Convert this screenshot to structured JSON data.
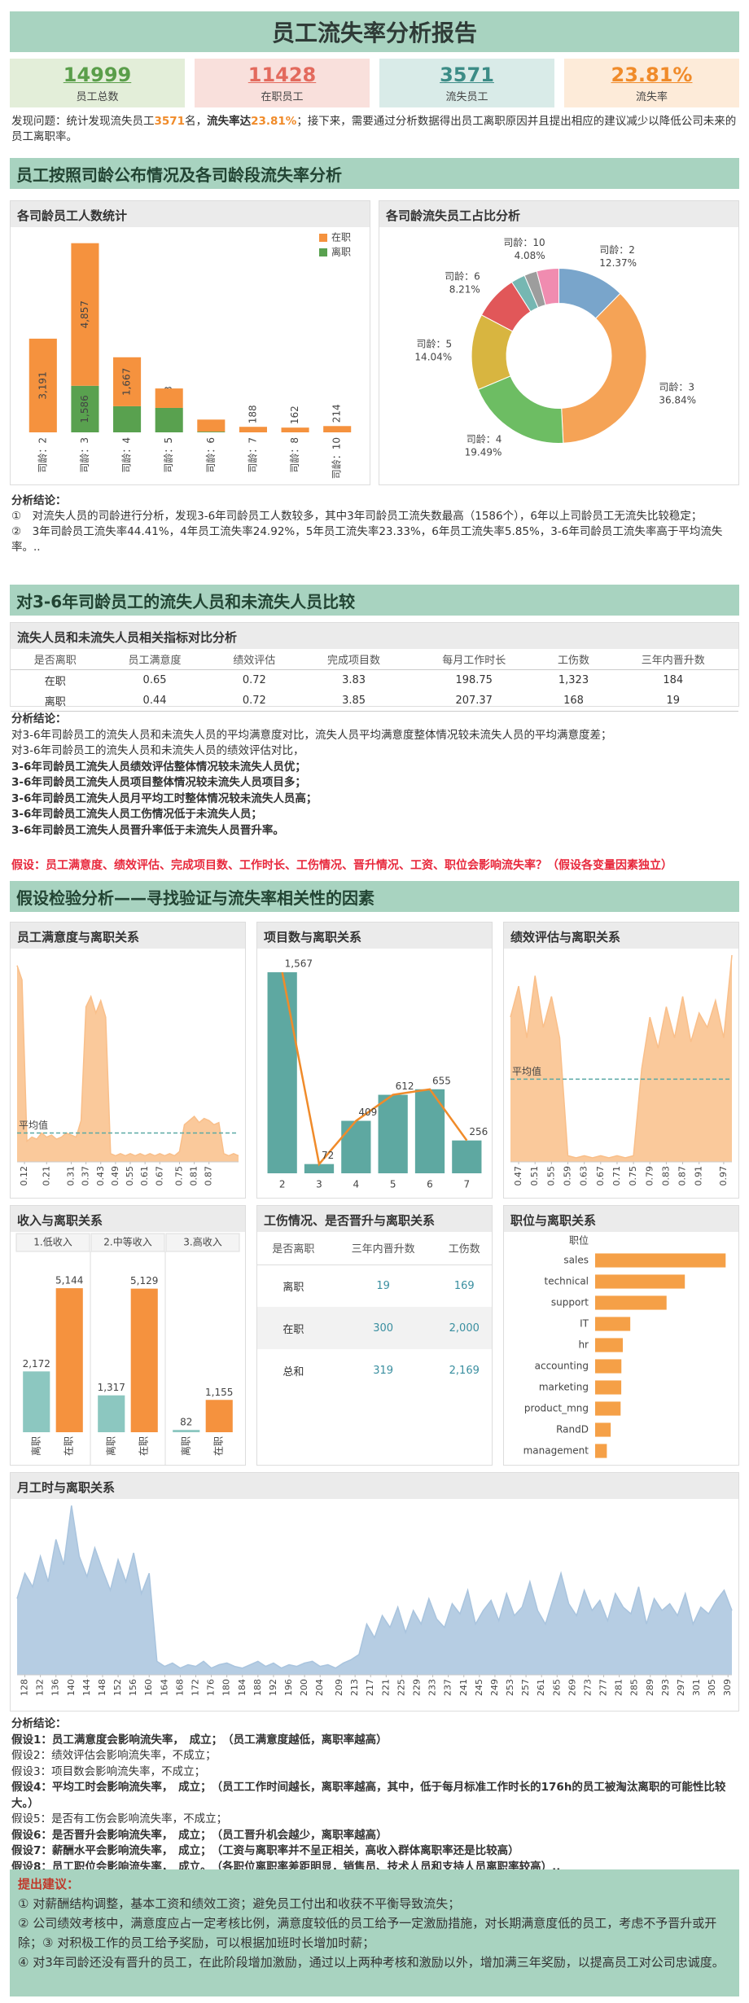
{
  "header": {
    "title": "员工流失率分析报告"
  },
  "kpis": [
    {
      "value": "14999",
      "label": "员工总数"
    },
    {
      "value": "11428",
      "label": "在职员工"
    },
    {
      "value": "3571",
      "label": "流失员工"
    },
    {
      "value": "23.81%",
      "label": "流失率"
    }
  ],
  "problem": {
    "parts": [
      "发现问题：统计发现流失员工",
      "3571",
      "名，",
      "流失率达",
      "23.81%",
      "；接下来，需要通过分析数据得出员工离职原因并且提出相应的建议减少以降低公司未来的员工离职率。"
    ]
  },
  "sections": [
    {
      "title": "员工按照司龄公布情况及各司龄段流失率分析"
    },
    {
      "title": "对3-6年司龄员工的流失人员和未流失人员比较"
    },
    {
      "title": "假设检验分析——寻找验证与流失率相关性的因素"
    }
  ],
  "analysis1": {
    "lines": [
      "分析结论：",
      "①　对流失人员的司龄进行分析，发现3-6年司龄员工人数较多，其中3年司龄员工流失数最高（1586个），6年以上司龄员工无流失比较稳定；",
      "②　3年司龄员工流失率44.41%，4年员工流失率24.92%，5年员工流失率23.33%，6年员工流失率5.85%，3-6年司龄员工流失率高于平均流失率。.."
    ]
  },
  "tables": [
    {
      "title": "流失人员和未流失人员相关指标对比分析",
      "headers": [
        "是否离职",
        "员工满意度",
        "绩效评估",
        "完成项目数",
        "每月工作时长",
        "工伤数",
        "三年内晋升数"
      ],
      "rows": [
        [
          "在职",
          "0.65",
          "0.72",
          "3.83",
          "198.75",
          "1,323",
          "184"
        ],
        [
          "离职",
          "0.44",
          "0.72",
          "3.85",
          "207.37",
          "168",
          "19"
        ]
      ]
    },
    {
      "title": "工伤情况、是否晋升与离职关系",
      "headers": [
        "是否离职",
        "三年内晋升数",
        "工伤数"
      ],
      "rows": [
        [
          "离职",
          "19",
          "169"
        ],
        [
          "在职",
          "300",
          "2,000"
        ],
        [
          "总和",
          "319",
          "2,169"
        ]
      ]
    }
  ],
  "analysis2": {
    "lines": [
      "分析结论：",
      "对3-6年司龄员工的流失人员和未流失人员的平均满意度对比，流失人员平均满意度整体情况较未流失人员的平均满意度差；",
      "对3-6年司龄员工的流失人员和未流失人员的绩效评估对比，",
      "3-6年司龄员工流失人员绩效评估整体情况较未流失人员优；",
      "3-6年司龄员工流失人员项目整体情况较未流失人员项目多；",
      "3-6年司龄员工流失人员月平均工时整体情况较未流失人员高；",
      "3-6年司龄员工流失人员工伤情况低于未流失人员；",
      "3-6年司龄员工流失人员晋升率低于未流失人员晋升率。"
    ],
    "hypothesis": "假设：员工满意度、绩效评估、完成项目数、工作时长、工伤情况、晋升情况、工资、职位会影响流失率？（假设各变量因素独立）"
  },
  "conclusions": {
    "lines": [
      "分析结论：",
      "假设1：员工满意度会影响流失率，　成立；　（员工满意度越低，离职率越高）",
      "假设2：绩效评估会影响流失率，不成立；",
      "假设3：项目数会影响流失率，不成立；",
      "假设4：平均工时会影响流失率，　成立；　（员工工作时间越长，离职率越高，其中，低于每月标准工作时长的176h的员工被淘汰离职的可能性比较大。）",
      "假设5：是否有工伤会影响流失率，不成立；",
      "假设6：是否晋升会影响流失率，　成立；　（员工晋升机会越少，离职率越高）",
      "假设7：薪酬水平会影响流失率，　成立；　（工资与离职率并不呈正相关，高收入群体离职率还是比较高）",
      "假设8：员工职位会影响流失率，　成立。　（各职位离职率差距明显，销售员、技术人员和支持人员离职率较高）.."
    ]
  },
  "suggestions": {
    "lines": [
      "提出建议：",
      "① 对薪酬结构调整，基本工资和绩效工资；避免员工付出和收获不平衡导致流失；",
      "② 公司绩效考核中，满意度应占一定考核比例，满意度较低的员工给予一定激励措施，对长期满意度低的员工，考虑不予晋升或开除；③ 对积极工作的员工给予奖励，可以根据加班时长增加时薪；",
      "④ 对3年司龄还没有晋升的员工，在此阶段增加激励，通过以上两种考核和激励以外，增加满三年奖励，以提高员工对公司忠诚度。"
    ]
  },
  "chart_data": [
    {
      "type": "bar",
      "stacked": true,
      "title": "各司龄员工人数统计",
      "categories": [
        "司龄：2",
        "司龄：3",
        "司龄：4",
        "司龄：5",
        "司龄：6",
        "司龄：7",
        "司龄：8",
        "司龄：10"
      ],
      "series": [
        {
          "name": "在职",
          "color": "#f5923e",
          "values": [
            3191,
            4857,
            1667,
            662,
            410,
            188,
            162,
            214
          ],
          "value_labels": [
            "3,191",
            "4,857",
            "1,667",
            null,
            null,
            "188",
            "162",
            "214"
          ]
        },
        {
          "name": "离职",
          "color": "#59a14f",
          "values": [
            0,
            1586,
            890,
            833,
            25,
            0,
            0,
            0
          ],
          "value_labels": [
            null,
            "1,586",
            null,
            "833",
            null,
            null,
            null,
            null
          ]
        }
      ],
      "ylim": [
        0,
        6600
      ],
      "legend": "top-right"
    },
    {
      "type": "pie",
      "donut": true,
      "title": "各司龄流失员工占比分析",
      "categories": [
        "司龄：2",
        "司龄：3",
        "司龄：4",
        "司龄：5",
        "司龄：6",
        null,
        null,
        "司龄：10"
      ],
      "values": [
        12.37,
        36.84,
        19.49,
        14.04,
        8.21,
        2.61,
        2.36,
        4.08
      ],
      "value_labels": [
        "12.37%",
        "36.84%",
        "19.49%",
        "14.04%",
        "8.21%",
        null,
        null,
        "4.08%"
      ],
      "colors": [
        "#79a5cb",
        "#f5a356",
        "#6dbd63",
        "#d8b540",
        "#e15759",
        "#76b7b2",
        "#9d9d9d",
        "#f08cb0"
      ]
    },
    {
      "type": "area",
      "title": "员工满意度与离职关系",
      "x": [
        0.09,
        0.11,
        0.13,
        0.15,
        0.17,
        0.19,
        0.21,
        0.23,
        0.25,
        0.27,
        0.29,
        0.31,
        0.33,
        0.35,
        0.37,
        0.39,
        0.41,
        0.43,
        0.45,
        0.47,
        0.49,
        0.51,
        0.53,
        0.55,
        0.57,
        0.59,
        0.61,
        0.63,
        0.65,
        0.67,
        0.69,
        0.71,
        0.73,
        0.75,
        0.77,
        0.79,
        0.81,
        0.83,
        0.85,
        0.87,
        0.89,
        0.91,
        0.93,
        0.95,
        0.97,
        0.99
      ],
      "values": [
        95,
        88,
        10,
        12,
        11,
        14,
        12,
        13,
        11,
        12,
        14,
        13,
        12,
        20,
        75,
        80,
        72,
        78,
        70,
        4,
        3,
        4,
        3,
        4,
        3,
        4,
        3,
        4,
        3,
        4,
        3,
        4,
        3,
        5,
        18,
        20,
        22,
        19,
        21,
        20,
        18,
        19,
        4,
        3,
        4,
        3
      ],
      "xlim": [
        0.09,
        0.99
      ],
      "ylim": [
        0,
        100
      ],
      "xticks": [
        0.12,
        0.21,
        0.31,
        0.37,
        0.43,
        0.49,
        0.55,
        0.61,
        0.67,
        0.75,
        0.81,
        0.87
      ],
      "color": "#f9bf8a",
      "reference_line": {
        "label": "平均值",
        "value": 14
      }
    },
    {
      "type": "bar",
      "title": "项目数与离职关系",
      "categories": [
        "2",
        "3",
        "4",
        "5",
        "6",
        "7"
      ],
      "values": [
        1567,
        72,
        409,
        612,
        655,
        256
      ],
      "value_labels": [
        "1,567",
        "72",
        "409",
        "612",
        "655",
        "256"
      ],
      "color": "#5ea8a1",
      "line": {
        "color": "#f08b2a"
      },
      "ylim": [
        0,
        1650
      ]
    },
    {
      "type": "area",
      "title": "绩效评估与离职关系",
      "x": [
        0.45,
        0.47,
        0.49,
        0.51,
        0.53,
        0.55,
        0.57,
        0.59,
        0.61,
        0.63,
        0.65,
        0.67,
        0.69,
        0.71,
        0.73,
        0.75,
        0.77,
        0.79,
        0.81,
        0.83,
        0.85,
        0.87,
        0.89,
        0.91,
        0.93,
        0.95,
        0.97,
        0.99
      ],
      "values": [
        70,
        85,
        60,
        90,
        65,
        80,
        60,
        3,
        2,
        3,
        2,
        3,
        2,
        3,
        2,
        3,
        45,
        70,
        55,
        75,
        60,
        80,
        58,
        72,
        65,
        78,
        60,
        100
      ],
      "xlim": [
        0.45,
        0.99
      ],
      "ylim": [
        0,
        100
      ],
      "xticks": [
        0.47,
        0.51,
        0.55,
        0.59,
        0.63,
        0.67,
        0.71,
        0.75,
        0.79,
        0.83,
        0.87,
        0.91,
        0.97
      ],
      "color": "#f9bf8a",
      "reference_line": {
        "label": "平均值",
        "value": 40
      }
    },
    {
      "type": "bar",
      "grouped": true,
      "title": "收入与离职关系",
      "categories": [
        "1.低收入",
        "2.中等收入",
        "3.高收入"
      ],
      "series": [
        {
          "name": "离职",
          "color": "#8cc7c0",
          "values": [
            2172,
            1317,
            82
          ],
          "value_labels": [
            "2,172",
            "1,317",
            "82"
          ]
        },
        {
          "name": "在职",
          "color": "#f5923e",
          "values": [
            5144,
            5129,
            1155
          ],
          "value_labels": [
            "5,144",
            "5,129",
            "1,155"
          ]
        }
      ],
      "ylim": [
        0,
        5700
      ]
    },
    {
      "type": "hbar",
      "title": "职位与离职关系",
      "y_label": "职位",
      "categories": [
        "sales",
        "technical",
        "support",
        "IT",
        "hr",
        "accounting",
        "marketing",
        "product_mng",
        "RandD",
        "management"
      ],
      "values": [
        1014,
        697,
        555,
        273,
        215,
        204,
        203,
        198,
        121,
        91
      ],
      "color": "#f5a047",
      "xlim": [
        0,
        1050
      ]
    },
    {
      "type": "area",
      "title": "月工时与离职关系",
      "x": [
        126,
        128,
        130,
        132,
        134,
        136,
        138,
        140,
        142,
        144,
        146,
        148,
        150,
        152,
        154,
        156,
        158,
        160,
        162,
        164,
        166,
        168,
        170,
        172,
        174,
        176,
        178,
        180,
        182,
        184,
        186,
        188,
        190,
        192,
        194,
        196,
        198,
        200,
        202,
        204,
        206,
        208,
        210,
        212,
        214,
        216,
        218,
        220,
        222,
        224,
        226,
        228,
        230,
        232,
        234,
        236,
        238,
        240,
        242,
        244,
        246,
        248,
        250,
        252,
        254,
        256,
        258,
        260,
        262,
        264,
        266,
        268,
        270,
        272,
        274,
        276,
        278,
        280,
        282,
        284,
        286,
        288,
        290,
        292,
        294,
        296,
        298,
        300,
        302,
        304,
        306,
        308,
        310
      ],
      "values": [
        45,
        60,
        52,
        70,
        55,
        80,
        65,
        100,
        70,
        58,
        75,
        62,
        50,
        68,
        55,
        72,
        48,
        60,
        8,
        5,
        7,
        4,
        6,
        5,
        8,
        4,
        6,
        7,
        5,
        4,
        6,
        8,
        5,
        7,
        4,
        6,
        5,
        7,
        8,
        5,
        6,
        4,
        7,
        9,
        12,
        30,
        22,
        35,
        28,
        40,
        25,
        38,
        30,
        45,
        33,
        28,
        42,
        36,
        50,
        30,
        38,
        44,
        32,
        48,
        35,
        40,
        55,
        38,
        30,
        45,
        60,
        42,
        35,
        50,
        38,
        44,
        32,
        48,
        40,
        36,
        52,
        30,
        45,
        38,
        42,
        35,
        48,
        30,
        40,
        36,
        44,
        50,
        38
      ],
      "xlim": [
        126,
        310
      ],
      "ylim": [
        0,
        100
      ],
      "xticks": [
        128,
        132,
        136,
        140,
        144,
        148,
        152,
        156,
        160,
        164,
        168,
        172,
        176,
        180,
        184,
        188,
        192,
        196,
        200,
        204,
        209,
        213,
        217,
        221,
        225,
        229,
        233,
        237,
        241,
        245,
        249,
        253,
        257,
        261,
        265,
        269,
        273,
        277,
        281,
        285,
        289,
        293,
        297,
        301,
        305,
        309
      ],
      "color": "#a9c4de"
    }
  ]
}
